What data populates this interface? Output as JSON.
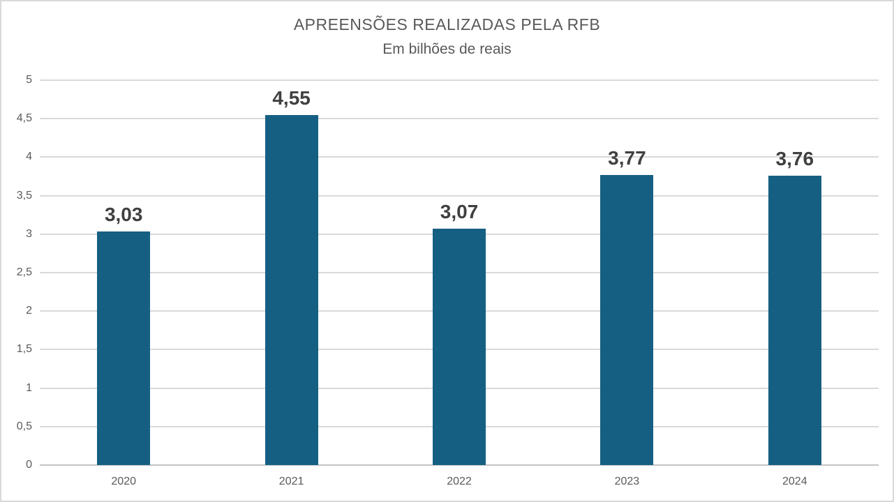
{
  "chart": {
    "title": "APREENSÕES REALIZADAS PELA RFB",
    "subtitle": "Em bilhões de reais"
  },
  "colors": {
    "bar": "#156082",
    "title_text": "#595959",
    "tick_text": "#595959",
    "value_label_text": "#404040",
    "gridline": "#D9D9D9",
    "axis_line": "#C4C4C4",
    "border": "#D9D9D9",
    "background": "#FFFFFF"
  },
  "chart_data": {
    "type": "bar",
    "title": "APREENSÕES REALIZADAS PELA RFB",
    "subtitle": "Em bilhões de reais",
    "categories": [
      "2020",
      "2021",
      "2022",
      "2023",
      "2024"
    ],
    "values": [
      3.03,
      4.55,
      3.07,
      3.77,
      3.76
    ],
    "value_labels": [
      "3,03",
      "4,55",
      "3,07",
      "3,77",
      "3,76"
    ],
    "xlabel": "",
    "ylabel": "",
    "ylim": [
      0,
      5
    ],
    "y_tick_step": 0.5,
    "y_tick_values": [
      0,
      0.5,
      1,
      1.5,
      2,
      2.5,
      3,
      3.5,
      4,
      4.5,
      5
    ],
    "y_tick_labels": [
      "0",
      "0,5",
      "1",
      "1,5",
      "2",
      "2,5",
      "3",
      "3,5",
      "4",
      "4,5",
      "5"
    ],
    "grid": true,
    "legend": false,
    "decimal_separator": ","
  }
}
